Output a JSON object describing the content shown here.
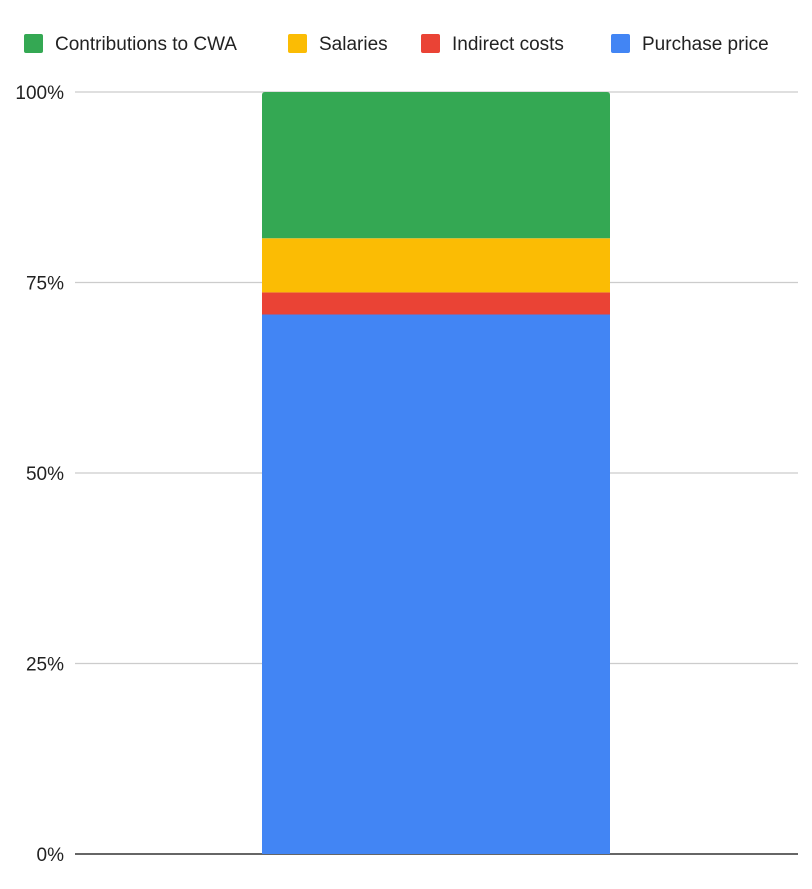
{
  "chart_data": {
    "type": "bar",
    "stacked": true,
    "stack_mode": "percent",
    "categories": [
      ""
    ],
    "series": [
      {
        "name": "Purchase price",
        "values": [
          70.8
        ],
        "color": "#4285F4"
      },
      {
        "name": "Indirect costs",
        "values": [
          2.9
        ],
        "color": "#EA4335"
      },
      {
        "name": "Salaries",
        "values": [
          7.1
        ],
        "color": "#FBBC04"
      },
      {
        "name": "Contributions to CWA",
        "values": [
          19.2
        ],
        "color": "#34A853"
      }
    ],
    "legend_order": [
      "Contributions to CWA",
      "Salaries",
      "Indirect costs",
      "Purchase price"
    ],
    "y_ticks": [
      "0%",
      "25%",
      "50%",
      "75%",
      "100%"
    ],
    "ylim": [
      0,
      100
    ],
    "grid": true,
    "legend_position": "top",
    "title": "",
    "xlabel": "",
    "ylabel": ""
  }
}
